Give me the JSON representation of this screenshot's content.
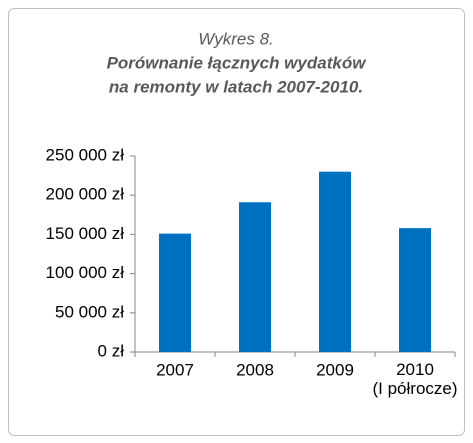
{
  "chart_data": {
    "type": "bar",
    "title": "Wykres 8.",
    "subtitle": [
      "Porównanie łącznych wydatków",
      "na remonty w latach 2007-2010."
    ],
    "categories": [
      "2007",
      "2008",
      "2009",
      "2010\n(I półrocze)"
    ],
    "values": [
      151000,
      191000,
      230000,
      158000
    ],
    "color": "#0070c0",
    "ylim": [
      0,
      250000
    ],
    "yticks": [
      {
        "value": 0,
        "label": "0 zł"
      },
      {
        "value": 50000,
        "label": "50 000 zł"
      },
      {
        "value": 100000,
        "label": "100 000 zł"
      },
      {
        "value": 150000,
        "label": "150 000 zł"
      },
      {
        "value": 200000,
        "label": "200 000 zł"
      },
      {
        "value": 250000,
        "label": "250 000 zł"
      }
    ],
    "grid": false
  }
}
